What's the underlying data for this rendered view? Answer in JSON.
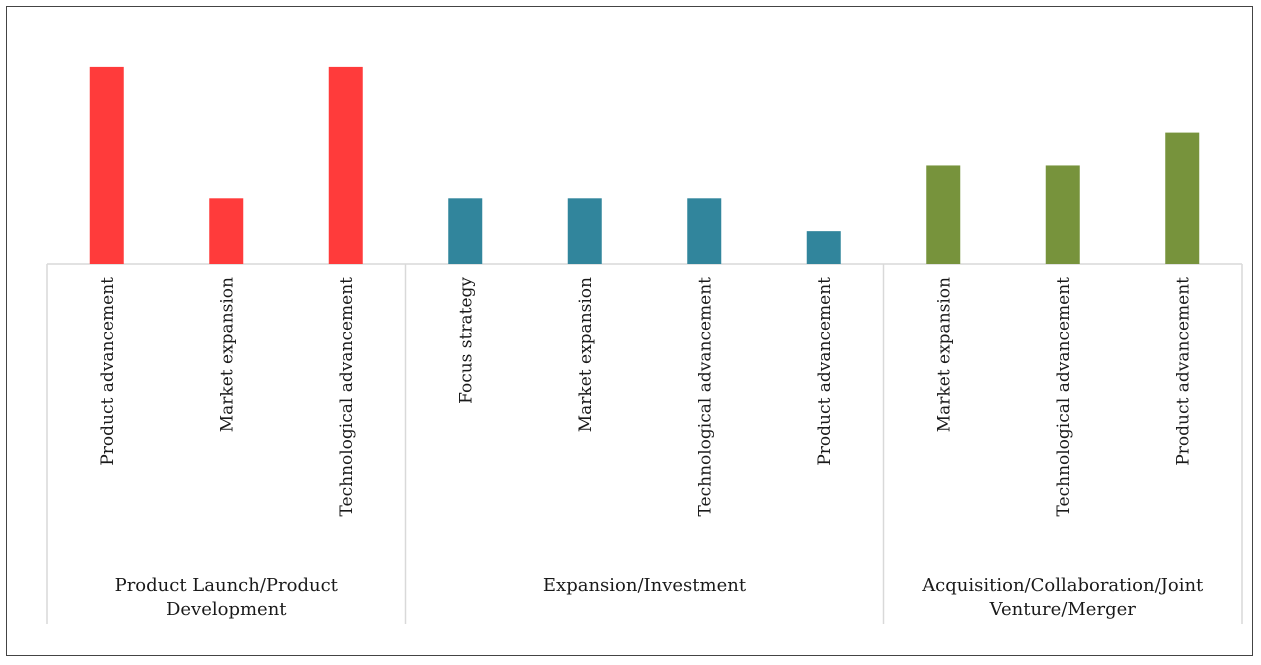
{
  "chart_data": {
    "type": "bar",
    "title": "",
    "xlabel": "",
    "ylabel": "",
    "ylim": [
      0,
      3.2
    ],
    "grid": false,
    "legend": "none",
    "groups": [
      {
        "label_lines": [
          "Product Launch/Product",
          "Development"
        ],
        "color": "#ff3b3b",
        "categories": [
          "Product advancement",
          "Market expansion",
          "Technological advancement"
        ],
        "values": [
          3,
          1,
          3
        ]
      },
      {
        "label_lines": [
          "Expansion/Investment"
        ],
        "color": "#31859c",
        "categories": [
          "Focus strategy",
          "Market expansion",
          "Technological advancement",
          "Product advancement"
        ],
        "values": [
          1,
          1,
          1,
          0.5
        ]
      },
      {
        "label_lines": [
          "Acquisition/Collaboration/Joint",
          "Venture/Merger"
        ],
        "color": "#77933c",
        "categories": [
          "Market expansion",
          "Technological advancement",
          "Product advancement"
        ],
        "values": [
          1.5,
          1.5,
          2
        ]
      }
    ]
  }
}
